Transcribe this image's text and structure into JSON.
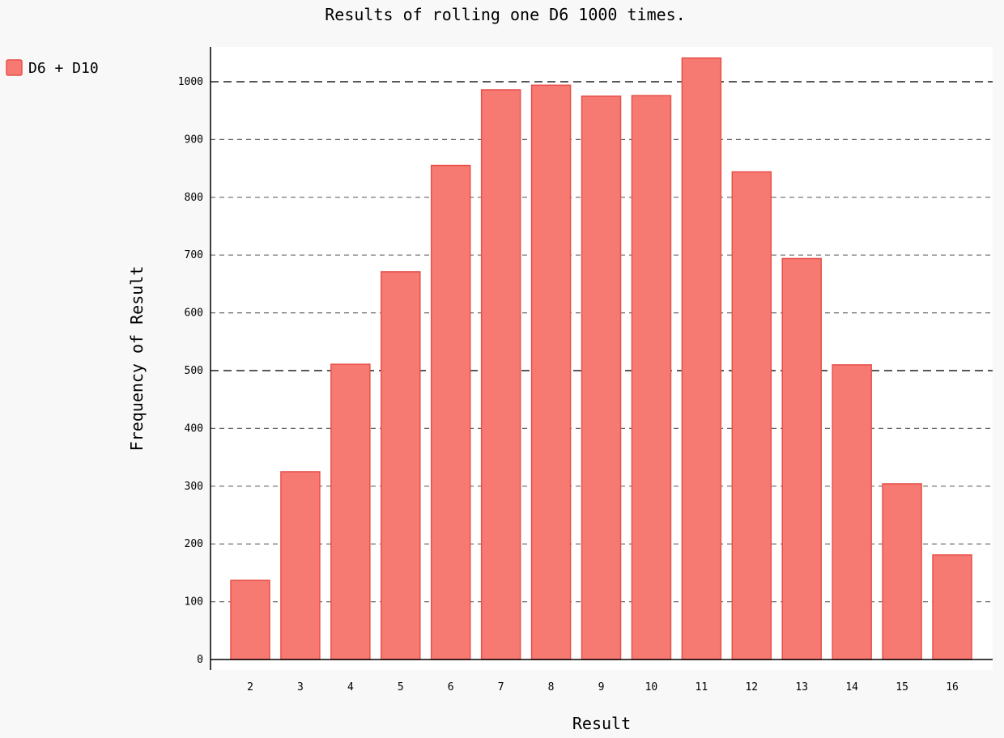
{
  "chart_data": {
    "type": "bar",
    "title": "Results of rolling one D6 1000 times.",
    "xlabel": "Result",
    "ylabel": "Frequency of Result",
    "categories": [
      "2",
      "3",
      "4",
      "5",
      "6",
      "7",
      "8",
      "9",
      "10",
      "11",
      "12",
      "13",
      "14",
      "15",
      "16"
    ],
    "series": [
      {
        "name": "D6 + D10",
        "values": [
          137,
          325,
          511,
          671,
          855,
          986,
          994,
          975,
          976,
          1041,
          844,
          694,
          510,
          304,
          181
        ]
      }
    ],
    "ylim": [
      0,
      1000
    ],
    "yticks": [
      0,
      100,
      200,
      300,
      400,
      500,
      600,
      700,
      800,
      900,
      1000
    ],
    "major_gridlines": [
      500,
      1000
    ],
    "grid": true,
    "legend_position": "top-left",
    "colors": {
      "bar_fill": "#f67a72",
      "bar_stroke": "#e8504a",
      "plot_background": "#ffffff",
      "page_background": "#f8f8f8"
    }
  }
}
